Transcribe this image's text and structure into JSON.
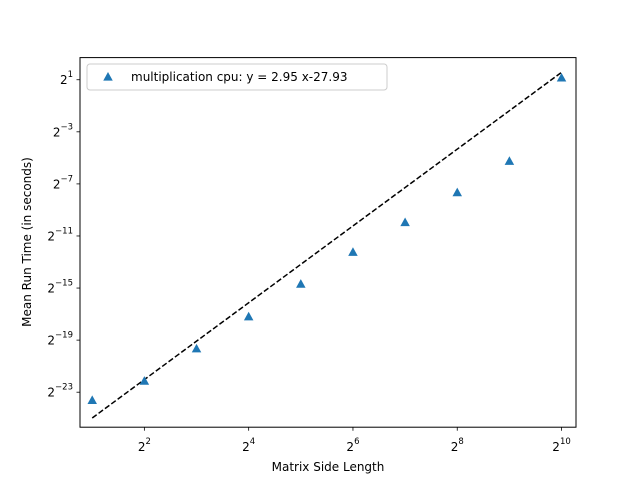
{
  "chart_data": {
    "type": "scatter",
    "xlabel": "Matrix Side Length",
    "ylabel": "Mean Run Time (in seconds)",
    "x_scale": "log2",
    "y_scale": "log2",
    "xlim": [
      1.7,
      1241
    ],
    "ylim": [
      1.85e-08,
      6.5
    ],
    "x_ticks": [
      {
        "value": 4,
        "base": "2",
        "exp": "2"
      },
      {
        "value": 16,
        "base": "2",
        "exp": "4"
      },
      {
        "value": 64,
        "base": "2",
        "exp": "6"
      },
      {
        "value": 256,
        "base": "2",
        "exp": "8"
      },
      {
        "value": 1024,
        "base": "2",
        "exp": "10"
      }
    ],
    "y_ticks": [
      {
        "value": 1.1920929e-07,
        "base": "2",
        "exp": "−23"
      },
      {
        "value": 1.9073486e-06,
        "base": "2",
        "exp": "−19"
      },
      {
        "value": 3.0517578e-05,
        "base": "2",
        "exp": "−15"
      },
      {
        "value": 0.00048828125,
        "base": "2",
        "exp": "−11"
      },
      {
        "value": 0.0078125,
        "base": "2",
        "exp": "−7"
      },
      {
        "value": 0.125,
        "base": "2",
        "exp": "−3"
      },
      {
        "value": 2,
        "base": "2",
        "exp": "1"
      }
    ],
    "grid": false,
    "legend_position": "top-left",
    "series": [
      {
        "name": "multiplication cpu: y = 2.95 x-27.93",
        "marker": "triangle",
        "color": "#1f77b4",
        "x": [
          2,
          4,
          8,
          16,
          32,
          64,
          128,
          256,
          512,
          1024
        ],
        "y": [
          7.7e-08,
          2.15e-07,
          1.2e-06,
          6.6e-06,
          3.75e-05,
          0.000205,
          0.001,
          0.0049,
          0.026,
          2.2
        ]
      }
    ],
    "fit_line": {
      "style": "dashed",
      "color": "#000000",
      "slope": 2.95,
      "intercept": -27.93,
      "x_range": [
        2,
        1024
      ]
    }
  }
}
